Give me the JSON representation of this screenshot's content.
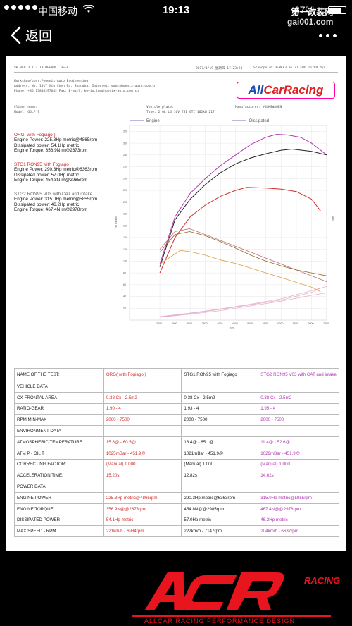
{
  "status": {
    "carrier": "中国移动",
    "time": "19:13",
    "battery": "67%",
    "watermark_line1": "第一改装网",
    "watermark_line2": "gai001.com"
  },
  "nav": {
    "back_label": "返回"
  },
  "doc": {
    "meta_top_left": "SW VER 3.1.2.13   DEFAULT USER",
    "meta_top_mid": "2017/1/19 星期四 17:23:28",
    "meta_top_right": "Standpoint DEWFA3 05 ZT FWD 1628V.dyn",
    "meta_workshop": "Workshop/user:Phoenix Auto Engineering",
    "meta_address": "Address: No. 1017 Xin Chen Rd. Shanghai Internet: www.phoenix-auto.com.cn",
    "meta_phone": "Phone: +86 13816297682 Fax:  E-mail: kevin.lu@phoenix-auto.com.cn",
    "meta_client": "Client name:",
    "meta_model": "Model: GOLF 7",
    "meta_plate": "Vehicle plate:",
    "meta_type": "Type: 2.0L L4 16V TSI GTI 162kW 217",
    "meta_manu": "Manufacturer: VOLKSWAGEN",
    "logo_part1": "All",
    "logo_part2": "CarRacing",
    "legend_engine": "Engine",
    "legend_dissipated": "Dissipated",
    "y_label": "Hp metric",
    "y2_label": "N.m",
    "x_label": "rpm",
    "runs": [
      {
        "title": "ORG( with Fogiago )",
        "l1": "Engine Power: 225.3Hp metric@4865rpm",
        "l2": "Dissipated power: 54.1Hp metric",
        "l3": "Engine Torque: 356.9N·m@2673rpm"
      },
      {
        "title": "STG1 RON95 with Fogiago",
        "l1": "Engine Power: 290.3Hp metric@6363rpm",
        "l2": "Dissipated power: 57.0Hp metric",
        "l3": "Engine Torque: 454.8N·m@2985rpm"
      },
      {
        "title": "STG2 RON95 V03 with CAT and intake",
        "l1": "Engine Power: 315.0Hp metric@5855rpm",
        "l2": "Dissipated power: 46.2Hp metric",
        "l3": "Engine Torque: 467.4N·m@2978rpm"
      }
    ]
  },
  "colors": {
    "org": "#d03030",
    "stg1": "#222222",
    "stg2": "#b03ab0",
    "acr_red": "#e8141e"
  },
  "table": {
    "header": [
      "NAME OF THE TEST:",
      "ORG( with Fogiago )",
      "STG1 RON95 with Fogiago",
      "STG2 RON95 V03 with CAT and intake"
    ],
    "rows": [
      {
        "type": "sec",
        "cells": [
          "VEHICLE DATA",
          "",
          "",
          ""
        ]
      },
      {
        "type": "row",
        "cells": [
          "CX-FRONTAL AREA",
          "0.38 Cx - 2.5m2",
          "0.38 Cx - 2.5m2",
          "0.38 Cx - 2.5m2"
        ]
      },
      {
        "type": "row",
        "cells": [
          "RATIO-GEAR",
          "1.90 - 4",
          "1.93 - 4",
          "1.95 - 4"
        ]
      },
      {
        "type": "row",
        "cells": [
          "RPM MIN-MAX",
          "2000 - 7500",
          "2000 - 7500",
          "2000 - 7500"
        ]
      },
      {
        "type": "sec",
        "cells": [
          "ENVIRONMENT DATA",
          "",
          "",
          ""
        ]
      },
      {
        "type": "row",
        "cells": [
          "ATMOSPHERIC TEMPERATURE:",
          "15.8@ - 60.5@",
          "18.4@ - 65.1@",
          "11.4@ - 52.6@"
        ]
      },
      {
        "type": "row",
        "cells": [
          "ATM P - OIL T",
          "1025mBar - 451.9@",
          "1021mBar - 451.9@",
          "1029mBar - 451.9@"
        ]
      },
      {
        "type": "row",
        "cells": [
          "CORRECTING FACTOR:",
          "(Manual) 1.000",
          "(Manual) 1.000",
          "(Manual) 1.000"
        ]
      },
      {
        "type": "row",
        "cells": [
          "ACCELERATION TIME:",
          "15.20s",
          "12.82s",
          "14.62s"
        ]
      },
      {
        "type": "sec",
        "cells": [
          "POWER DATA",
          "",
          "",
          ""
        ]
      },
      {
        "type": "row",
        "cells": [
          "ENGINE POWER",
          "225.3Hp metric@4865rpm",
          "290.3Hp metric@6363rpm",
          "315.0Hp metric@5855rpm"
        ]
      },
      {
        "type": "row",
        "cells": [
          "ENGINE TORQUE",
          "356.9N@@2673rpm",
          "454.8N@@2985rpm",
          "467.4N@@2978rpm"
        ]
      },
      {
        "type": "row",
        "cells": [
          "DISSIPATED POWER",
          "54.1Hp metric",
          "57.0Hp metric",
          "46.2Hp metric"
        ]
      },
      {
        "type": "row",
        "cells": [
          "MAX SPEED - RPM",
          "221km/h - 6984rpm",
          "222km/h - 7147rpm",
          "204km/h - 6637rpm"
        ]
      }
    ]
  },
  "footer_logo": {
    "main": "ACR",
    "sub": "RACING",
    "tagline": "ALLCAR RACING PERFORMANCE DESIGN"
  },
  "chart_data": {
    "type": "line",
    "xlim": [
      1000,
      7500
    ],
    "ylim": [
      0,
      330
    ],
    "xticks": [
      2000,
      2500,
      3000,
      3500,
      4000,
      4500,
      5000,
      5500,
      6000,
      6500,
      7000,
      7500
    ],
    "yticks": [
      20,
      40,
      60,
      80,
      100,
      120,
      140,
      160,
      180,
      200,
      220,
      240,
      260,
      280,
      300,
      320
    ],
    "series": [
      {
        "name": "STG2 RON95 V03 with CAT and intake",
        "kind": "power",
        "x": [
          2000,
          2500,
          3000,
          3500,
          4000,
          4500,
          5000,
          5500,
          5855,
          6200,
          6637,
          7000,
          7500
        ],
        "y": [
          95,
          175,
          215,
          240,
          262,
          280,
          298,
          310,
          315,
          314,
          310,
          300,
          280
        ]
      },
      {
        "name": "STG1 RON95 with Fogiago",
        "kind": "power",
        "x": [
          2000,
          2500,
          3000,
          3500,
          4000,
          4500,
          5000,
          5500,
          6000,
          6363,
          7000,
          7500
        ],
        "y": [
          90,
          170,
          205,
          230,
          250,
          265,
          275,
          282,
          288,
          290,
          286,
          280
        ]
      },
      {
        "name": "ORG( with Fogiago )",
        "kind": "power",
        "x": [
          2000,
          2500,
          3000,
          3500,
          4000,
          4500,
          4865,
          5500,
          6000,
          6500,
          7000,
          7300
        ],
        "y": [
          80,
          140,
          175,
          195,
          210,
          220,
          225,
          224,
          222,
          218,
          205,
          185
        ]
      },
      {
        "name": "STG2 RON95 V03 with CAT and intake",
        "kind": "torque",
        "x": [
          2000,
          2500,
          2978,
          3500,
          4000,
          4500,
          5000,
          5500,
          6000,
          6500,
          7000,
          7500
        ],
        "y": [
          120,
          150,
          155,
          145,
          135,
          125,
          115,
          105,
          95,
          85,
          75,
          65
        ]
      },
      {
        "name": "STG1 RON95 with Fogiago",
        "kind": "torque",
        "x": [
          2000,
          2500,
          2985,
          3500,
          4000,
          4500,
          5000,
          5500,
          6000,
          6500,
          7000,
          7500
        ],
        "y": [
          115,
          145,
          150,
          143,
          133,
          122,
          110,
          100,
          92,
          85,
          80,
          75
        ]
      },
      {
        "name": "ORG( with Fogiago )",
        "kind": "torque",
        "x": [
          2000,
          2673,
          3000,
          3500,
          4000,
          4500,
          5000,
          5500,
          6000,
          6500,
          7000,
          7300
        ],
        "y": [
          95,
          118,
          116,
          110,
          102,
          96,
          88,
          80,
          72,
          64,
          56,
          48
        ]
      },
      {
        "name": "STG2 RON95 V03 with CAT and intake",
        "kind": "dissipated",
        "x": [
          2000,
          3000,
          4000,
          5000,
          6000,
          7000,
          7500
        ],
        "y": [
          5,
          10,
          16,
          24,
          32,
          42,
          46
        ]
      },
      {
        "name": "STG1 RON95 with Fogiago",
        "kind": "dissipated",
        "x": [
          2000,
          3000,
          4000,
          5000,
          6000,
          7000,
          7500
        ],
        "y": [
          6,
          12,
          19,
          27,
          36,
          50,
          57
        ]
      },
      {
        "name": "ORG( with Fogiago )",
        "kind": "dissipated",
        "x": [
          2000,
          3000,
          4000,
          5000,
          6000,
          7000,
          7300
        ],
        "y": [
          5,
          11,
          18,
          26,
          34,
          47,
          54
        ]
      }
    ]
  }
}
